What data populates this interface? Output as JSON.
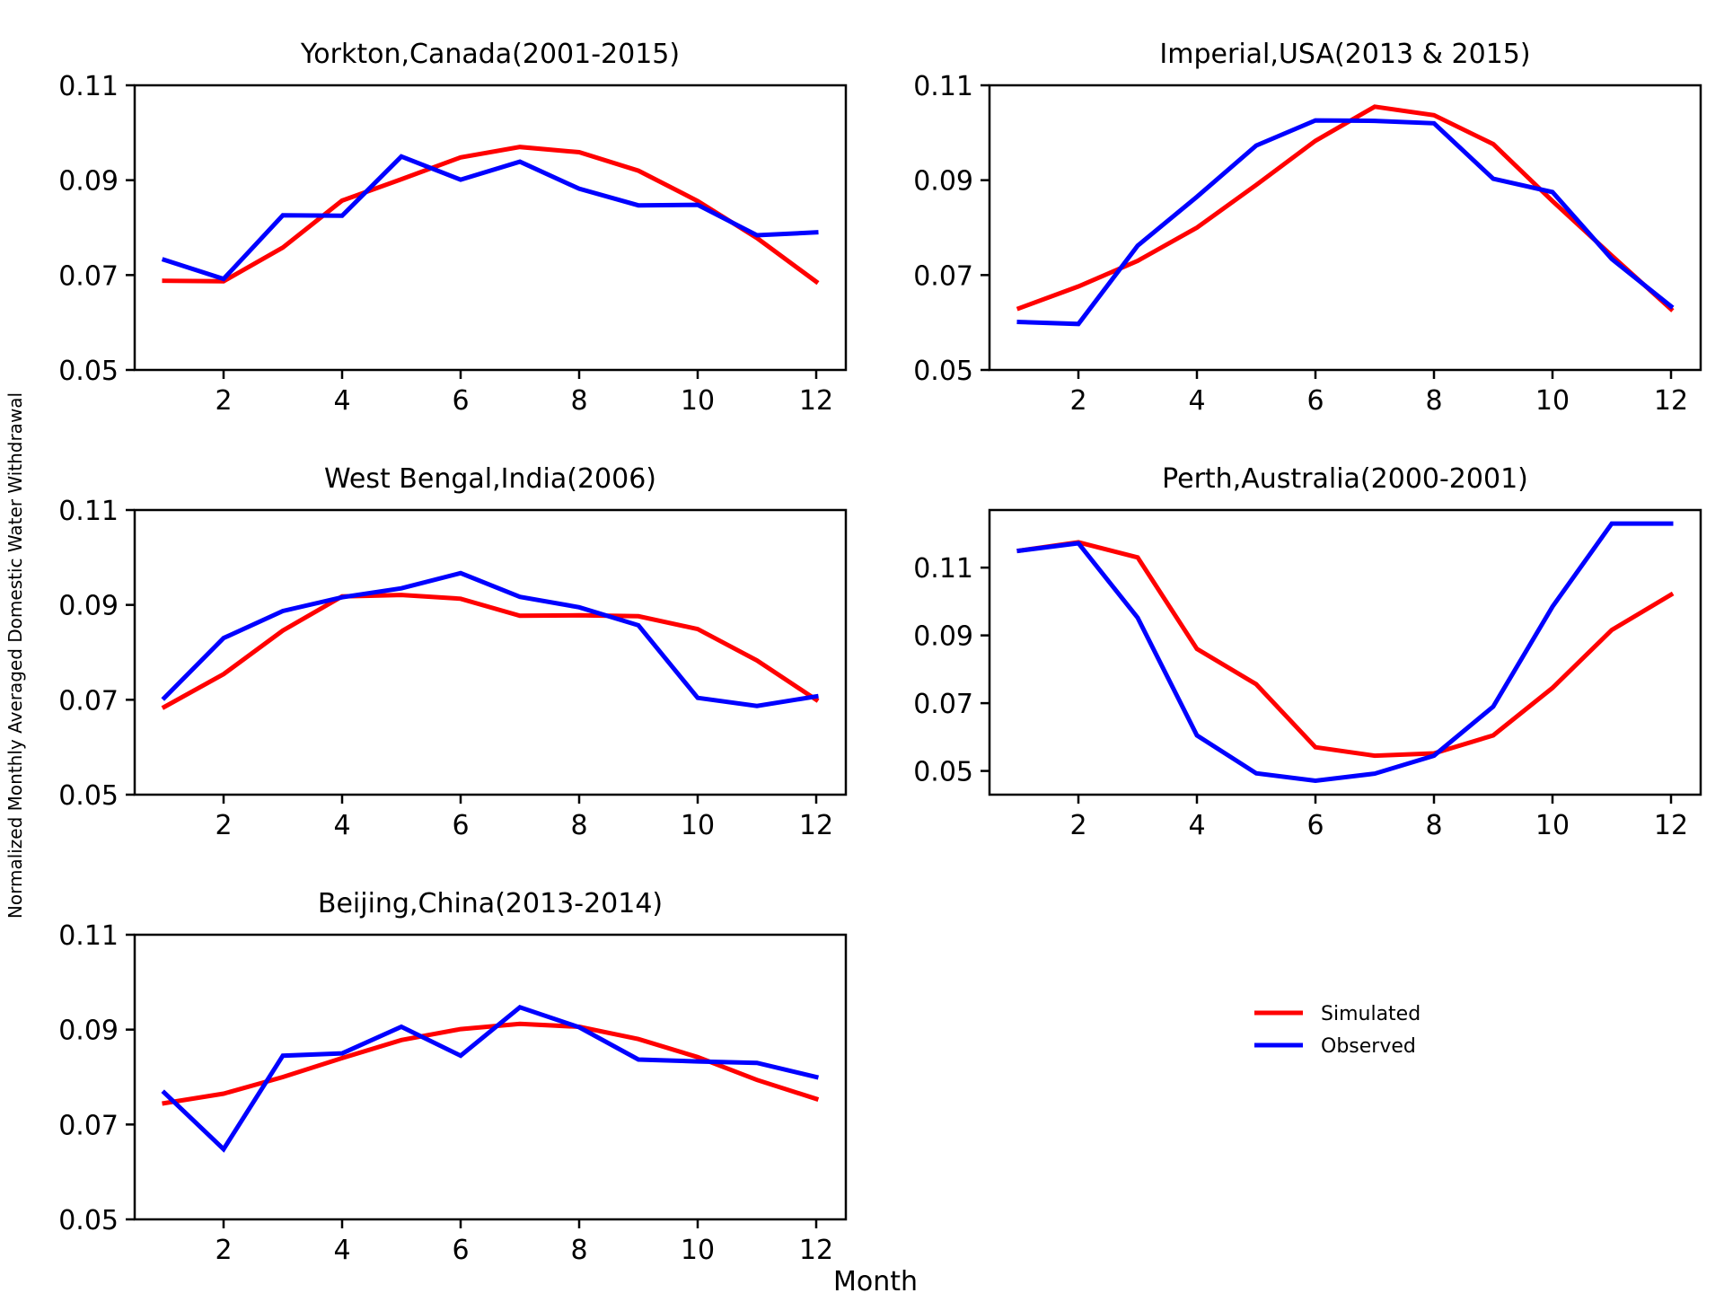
{
  "figure": {
    "xlabel": "Month",
    "ylabel": "Normalized Monthly Averaged Domestic Water Withdrawal"
  },
  "legend": {
    "placement": "lower-right (empty sixth panel)",
    "entries": [
      {
        "name": "Simulated",
        "color": "#ff0000"
      },
      {
        "name": "Observed",
        "color": "#0000ff"
      }
    ]
  },
  "colors": {
    "simulated": "#ff0000",
    "observed": "#0000ff",
    "axes": "#000000"
  },
  "chart_data": [
    {
      "type": "line",
      "title": "Yorkton,Canada(2001-2015)",
      "xlabel": "",
      "ylabel": "",
      "xlim": [
        0.5,
        12.5
      ],
      "ylim": [
        0.05,
        0.11
      ],
      "xticks": [
        "2",
        "4",
        "6",
        "8",
        "10",
        "12"
      ],
      "yticks": [
        "0.05",
        "0.07",
        "0.09",
        "0.11"
      ],
      "x": [
        1,
        2,
        3,
        4,
        5,
        6,
        7,
        8,
        9,
        10,
        11,
        12
      ],
      "grid": false,
      "series": [
        {
          "name": "Simulated",
          "color": "#ff0000",
          "values": [
            0.0688,
            0.0687,
            0.0758,
            0.0857,
            0.0902,
            0.0948,
            0.097,
            0.0959,
            0.092,
            0.0856,
            0.0778,
            0.0686
          ]
        },
        {
          "name": "Observed",
          "color": "#0000ff",
          "values": [
            0.0732,
            0.0692,
            0.0826,
            0.0825,
            0.095,
            0.0901,
            0.0939,
            0.0882,
            0.0847,
            0.0848,
            0.0784,
            0.079
          ]
        }
      ]
    },
    {
      "type": "line",
      "title": "Imperial,USA(2013 & 2015)",
      "xlabel": "",
      "ylabel": "",
      "xlim": [
        0.5,
        12.5
      ],
      "ylim": [
        0.05,
        0.11
      ],
      "xticks": [
        "2",
        "4",
        "6",
        "8",
        "10",
        "12"
      ],
      "yticks": [
        "0.05",
        "0.07",
        "0.09",
        "0.11"
      ],
      "x": [
        1,
        2,
        3,
        4,
        5,
        6,
        7,
        8,
        9,
        10,
        11,
        12
      ],
      "grid": false,
      "series": [
        {
          "name": "Simulated",
          "color": "#ff0000",
          "values": [
            0.063,
            0.0676,
            0.073,
            0.08,
            0.089,
            0.0983,
            0.1055,
            0.1037,
            0.0976,
            0.0856,
            0.0741,
            0.0628
          ]
        },
        {
          "name": "Observed",
          "color": "#0000ff",
          "values": [
            0.0601,
            0.0597,
            0.0762,
            0.0865,
            0.0973,
            0.1026,
            0.1025,
            0.102,
            0.0903,
            0.0875,
            0.0734,
            0.0634
          ]
        }
      ]
    },
    {
      "type": "line",
      "title": "West Bengal,India(2006)",
      "xlabel": "",
      "ylabel": "",
      "xlim": [
        0.5,
        12.5
      ],
      "ylim": [
        0.05,
        0.11
      ],
      "xticks": [
        "2",
        "4",
        "6",
        "8",
        "10",
        "12"
      ],
      "yticks": [
        "0.05",
        "0.07",
        "0.09",
        "0.11"
      ],
      "x": [
        1,
        2,
        3,
        4,
        5,
        6,
        7,
        8,
        9,
        10,
        11,
        12
      ],
      "grid": false,
      "series": [
        {
          "name": "Simulated",
          "color": "#ff0000",
          "values": [
            0.0685,
            0.0754,
            0.0846,
            0.0918,
            0.0921,
            0.0913,
            0.0877,
            0.0878,
            0.0876,
            0.0849,
            0.0783,
            0.07
          ]
        },
        {
          "name": "Observed",
          "color": "#0000ff",
          "values": [
            0.0704,
            0.083,
            0.0887,
            0.0916,
            0.0935,
            0.0967,
            0.0917,
            0.0895,
            0.0857,
            0.0704,
            0.0687,
            0.0707
          ]
        }
      ]
    },
    {
      "type": "line",
      "title": "Perth,Australia(2000-2001)",
      "xlabel": "",
      "ylabel": "",
      "xlim": [
        0.5,
        12.5
      ],
      "ylim": [
        0.043,
        0.127
      ],
      "xticks": [
        "2",
        "4",
        "6",
        "8",
        "10",
        "12"
      ],
      "yticks": [
        "0.05",
        "0.07",
        "0.09",
        "0.11"
      ],
      "x": [
        1,
        2,
        3,
        4,
        5,
        6,
        7,
        8,
        9,
        10,
        11,
        12
      ],
      "grid": false,
      "series": [
        {
          "name": "Simulated",
          "color": "#ff0000",
          "values": [
            0.115,
            0.1175,
            0.113,
            0.086,
            0.0756,
            0.057,
            0.0545,
            0.0552,
            0.0605,
            0.0745,
            0.0916,
            0.102
          ]
        },
        {
          "name": "Observed",
          "color": "#0000ff",
          "values": [
            0.115,
            0.1172,
            0.0952,
            0.0605,
            0.0493,
            0.0471,
            0.0492,
            0.0545,
            0.069,
            0.0985,
            0.123,
            0.123
          ]
        }
      ]
    },
    {
      "type": "line",
      "title": "Beijing,China(2013-2014)",
      "xlabel": "",
      "ylabel": "",
      "xlim": [
        0.5,
        12.5
      ],
      "ylim": [
        0.05,
        0.11
      ],
      "xticks": [
        "2",
        "4",
        "6",
        "8",
        "10",
        "12"
      ],
      "yticks": [
        "0.05",
        "0.07",
        "0.09",
        "0.11"
      ],
      "x": [
        1,
        2,
        3,
        4,
        5,
        6,
        7,
        8,
        9,
        10,
        11,
        12
      ],
      "grid": false,
      "series": [
        {
          "name": "Simulated",
          "color": "#ff0000",
          "values": [
            0.0745,
            0.0765,
            0.08,
            0.084,
            0.0878,
            0.0901,
            0.0912,
            0.0906,
            0.088,
            0.0842,
            0.0794,
            0.0754
          ]
        },
        {
          "name": "Observed",
          "color": "#0000ff",
          "values": [
            0.0767,
            0.0648,
            0.0845,
            0.085,
            0.0906,
            0.0845,
            0.0947,
            0.0905,
            0.0837,
            0.0833,
            0.083,
            0.08
          ]
        }
      ]
    }
  ]
}
